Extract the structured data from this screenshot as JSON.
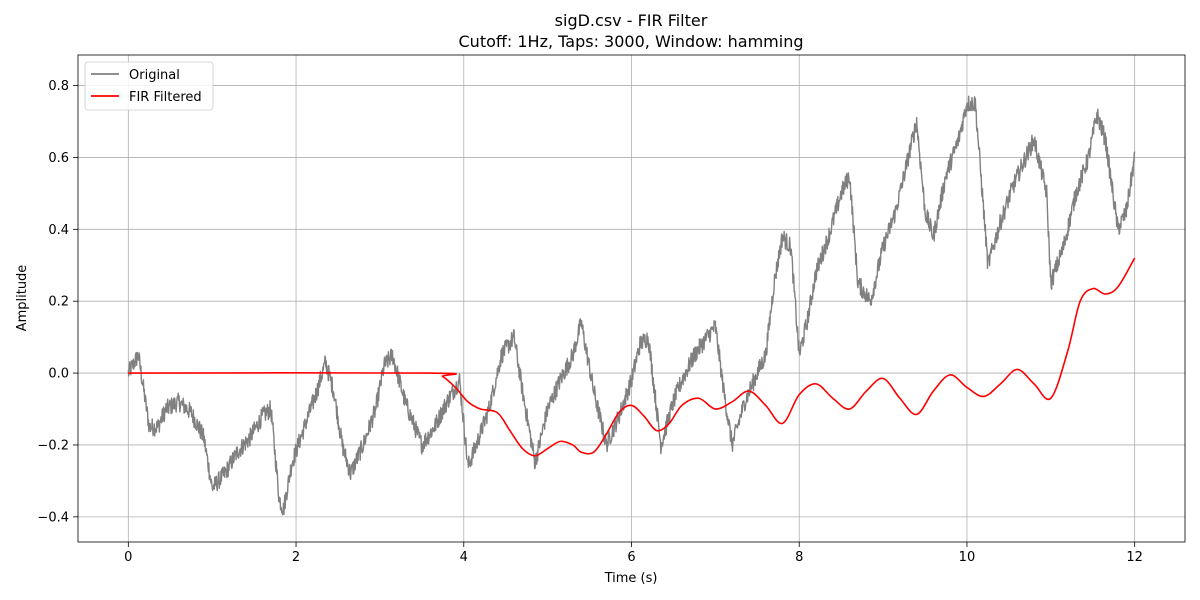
{
  "chart_data": {
    "type": "line",
    "title": "sigD.csv - FIR Filter",
    "subtitle": "Cutoff: 1Hz, Taps: 3000, Window: hamming",
    "xlabel": "Time (s)",
    "ylabel": "Amplitude",
    "xlim": [
      -0.6,
      12.6
    ],
    "ylim": [
      -0.47,
      0.885
    ],
    "xticks": [
      0,
      2,
      4,
      6,
      8,
      10,
      12
    ],
    "xtick_labels": [
      "0",
      "2",
      "4",
      "6",
      "8",
      "10",
      "12"
    ],
    "yticks": [
      -0.4,
      -0.2,
      0.0,
      0.2,
      0.4,
      0.6,
      0.8
    ],
    "ytick_labels": [
      "−0.4",
      "−0.2",
      "0.0",
      "0.2",
      "0.4",
      "0.6",
      "0.8"
    ],
    "grid": true,
    "legend": "upper-left",
    "series": [
      {
        "name": "Original",
        "color": "#808080",
        "noise": 0.025,
        "x": [
          0,
          0.05,
          0.12,
          0.25,
          0.35,
          0.45,
          0.6,
          0.75,
          0.9,
          1.0,
          1.15,
          1.3,
          1.45,
          1.6,
          1.7,
          1.8,
          1.85,
          1.95,
          2.1,
          2.25,
          2.35,
          2.45,
          2.55,
          2.65,
          2.8,
          2.95,
          3.05,
          3.15,
          3.3,
          3.5,
          3.65,
          3.8,
          3.95,
          4.05,
          4.15,
          4.3,
          4.45,
          4.6,
          4.7,
          4.85,
          5.0,
          5.15,
          5.3,
          5.4,
          5.55,
          5.7,
          5.85,
          6.0,
          6.1,
          6.2,
          6.35,
          6.5,
          6.6,
          6.75,
          6.9,
          7.0,
          7.1,
          7.2,
          7.35,
          7.5,
          7.6,
          7.7,
          7.8,
          7.9,
          8.0,
          8.1,
          8.2,
          8.35,
          8.5,
          8.6,
          8.7,
          8.85,
          9.0,
          9.15,
          9.3,
          9.4,
          9.5,
          9.6,
          9.75,
          9.9,
          10.0,
          10.1,
          10.25,
          10.4,
          10.55,
          10.7,
          10.8,
          10.95,
          11.0,
          11.15,
          11.3,
          11.45,
          11.55,
          11.65,
          11.8,
          11.9,
          12.0
        ],
        "y": [
          0.0,
          0.02,
          0.05,
          -0.15,
          -0.15,
          -0.1,
          -0.08,
          -0.11,
          -0.18,
          -0.32,
          -0.28,
          -0.22,
          -0.18,
          -0.12,
          -0.1,
          -0.35,
          -0.38,
          -0.25,
          -0.15,
          -0.05,
          0.03,
          -0.05,
          -0.2,
          -0.28,
          -0.2,
          -0.1,
          0.02,
          0.05,
          -0.08,
          -0.2,
          -0.15,
          -0.08,
          -0.02,
          -0.26,
          -0.2,
          -0.1,
          0.05,
          0.1,
          -0.05,
          -0.25,
          -0.1,
          -0.02,
          0.05,
          0.14,
          -0.05,
          -0.2,
          -0.12,
          -0.02,
          0.08,
          0.1,
          -0.2,
          -0.08,
          -0.02,
          0.05,
          0.1,
          0.13,
          -0.05,
          -0.2,
          -0.08,
          0.0,
          0.05,
          0.25,
          0.38,
          0.35,
          0.05,
          0.15,
          0.28,
          0.38,
          0.5,
          0.55,
          0.25,
          0.2,
          0.35,
          0.45,
          0.6,
          0.7,
          0.45,
          0.38,
          0.55,
          0.65,
          0.75,
          0.75,
          0.3,
          0.42,
          0.52,
          0.6,
          0.65,
          0.5,
          0.25,
          0.35,
          0.5,
          0.6,
          0.72,
          0.65,
          0.4,
          0.45,
          0.6
        ]
      },
      {
        "name": "FIR Filtered",
        "color": "#ff0000",
        "x": [
          0,
          3.6,
          3.75,
          3.9,
          4.05,
          4.2,
          4.4,
          4.55,
          4.7,
          4.85,
          5.0,
          5.15,
          5.3,
          5.4,
          5.55,
          5.7,
          5.85,
          6.0,
          6.15,
          6.3,
          6.45,
          6.6,
          6.8,
          7.0,
          7.2,
          7.4,
          7.6,
          7.8,
          8.0,
          8.2,
          8.4,
          8.6,
          8.8,
          9.0,
          9.2,
          9.4,
          9.6,
          9.8,
          10.0,
          10.2,
          10.4,
          10.6,
          10.8,
          11.0,
          11.2,
          11.35,
          11.5,
          11.65,
          11.8,
          12.0
        ],
        "y": [
          0.0,
          0.0,
          -0.01,
          -0.04,
          -0.08,
          -0.1,
          -0.11,
          -0.16,
          -0.21,
          -0.23,
          -0.21,
          -0.19,
          -0.2,
          -0.22,
          -0.22,
          -0.17,
          -0.11,
          -0.09,
          -0.12,
          -0.16,
          -0.14,
          -0.09,
          -0.07,
          -0.1,
          -0.08,
          -0.05,
          -0.09,
          -0.14,
          -0.06,
          -0.03,
          -0.07,
          -0.1,
          -0.05,
          -0.015,
          -0.07,
          -0.115,
          -0.05,
          -0.005,
          -0.04,
          -0.065,
          -0.03,
          0.01,
          -0.03,
          -0.07,
          0.06,
          0.2,
          0.235,
          0.22,
          0.24,
          0.32
        ]
      }
    ]
  }
}
